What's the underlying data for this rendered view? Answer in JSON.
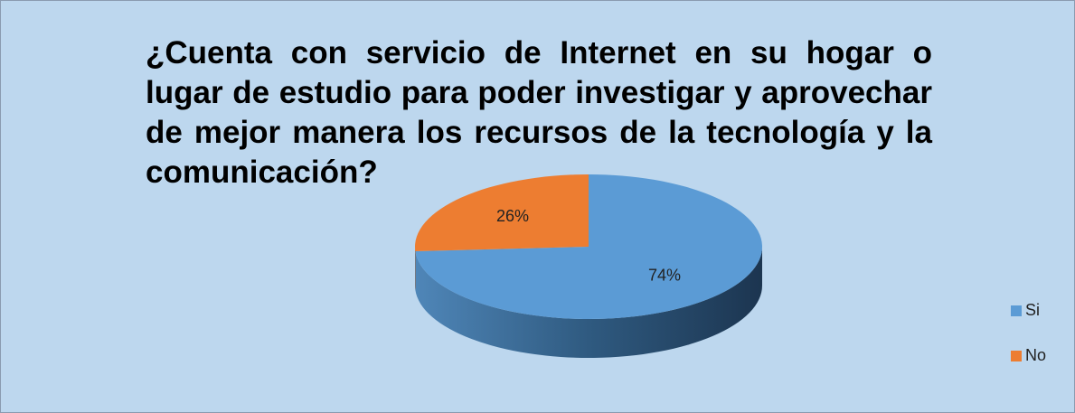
{
  "chart_data": {
    "type": "pie",
    "title": "¿Cuenta con servicio de Internet en su hogar o lugar de estudio para poder investigar y aprovechar de mejor manera los recursos de la tecnología y la comunicación?",
    "categories": [
      "Si",
      "No"
    ],
    "values": [
      74,
      26
    ],
    "value_labels": [
      "74%",
      "26%"
    ],
    "colors": [
      "#5b9bd5",
      "#ed7d31"
    ],
    "legend": "right"
  }
}
